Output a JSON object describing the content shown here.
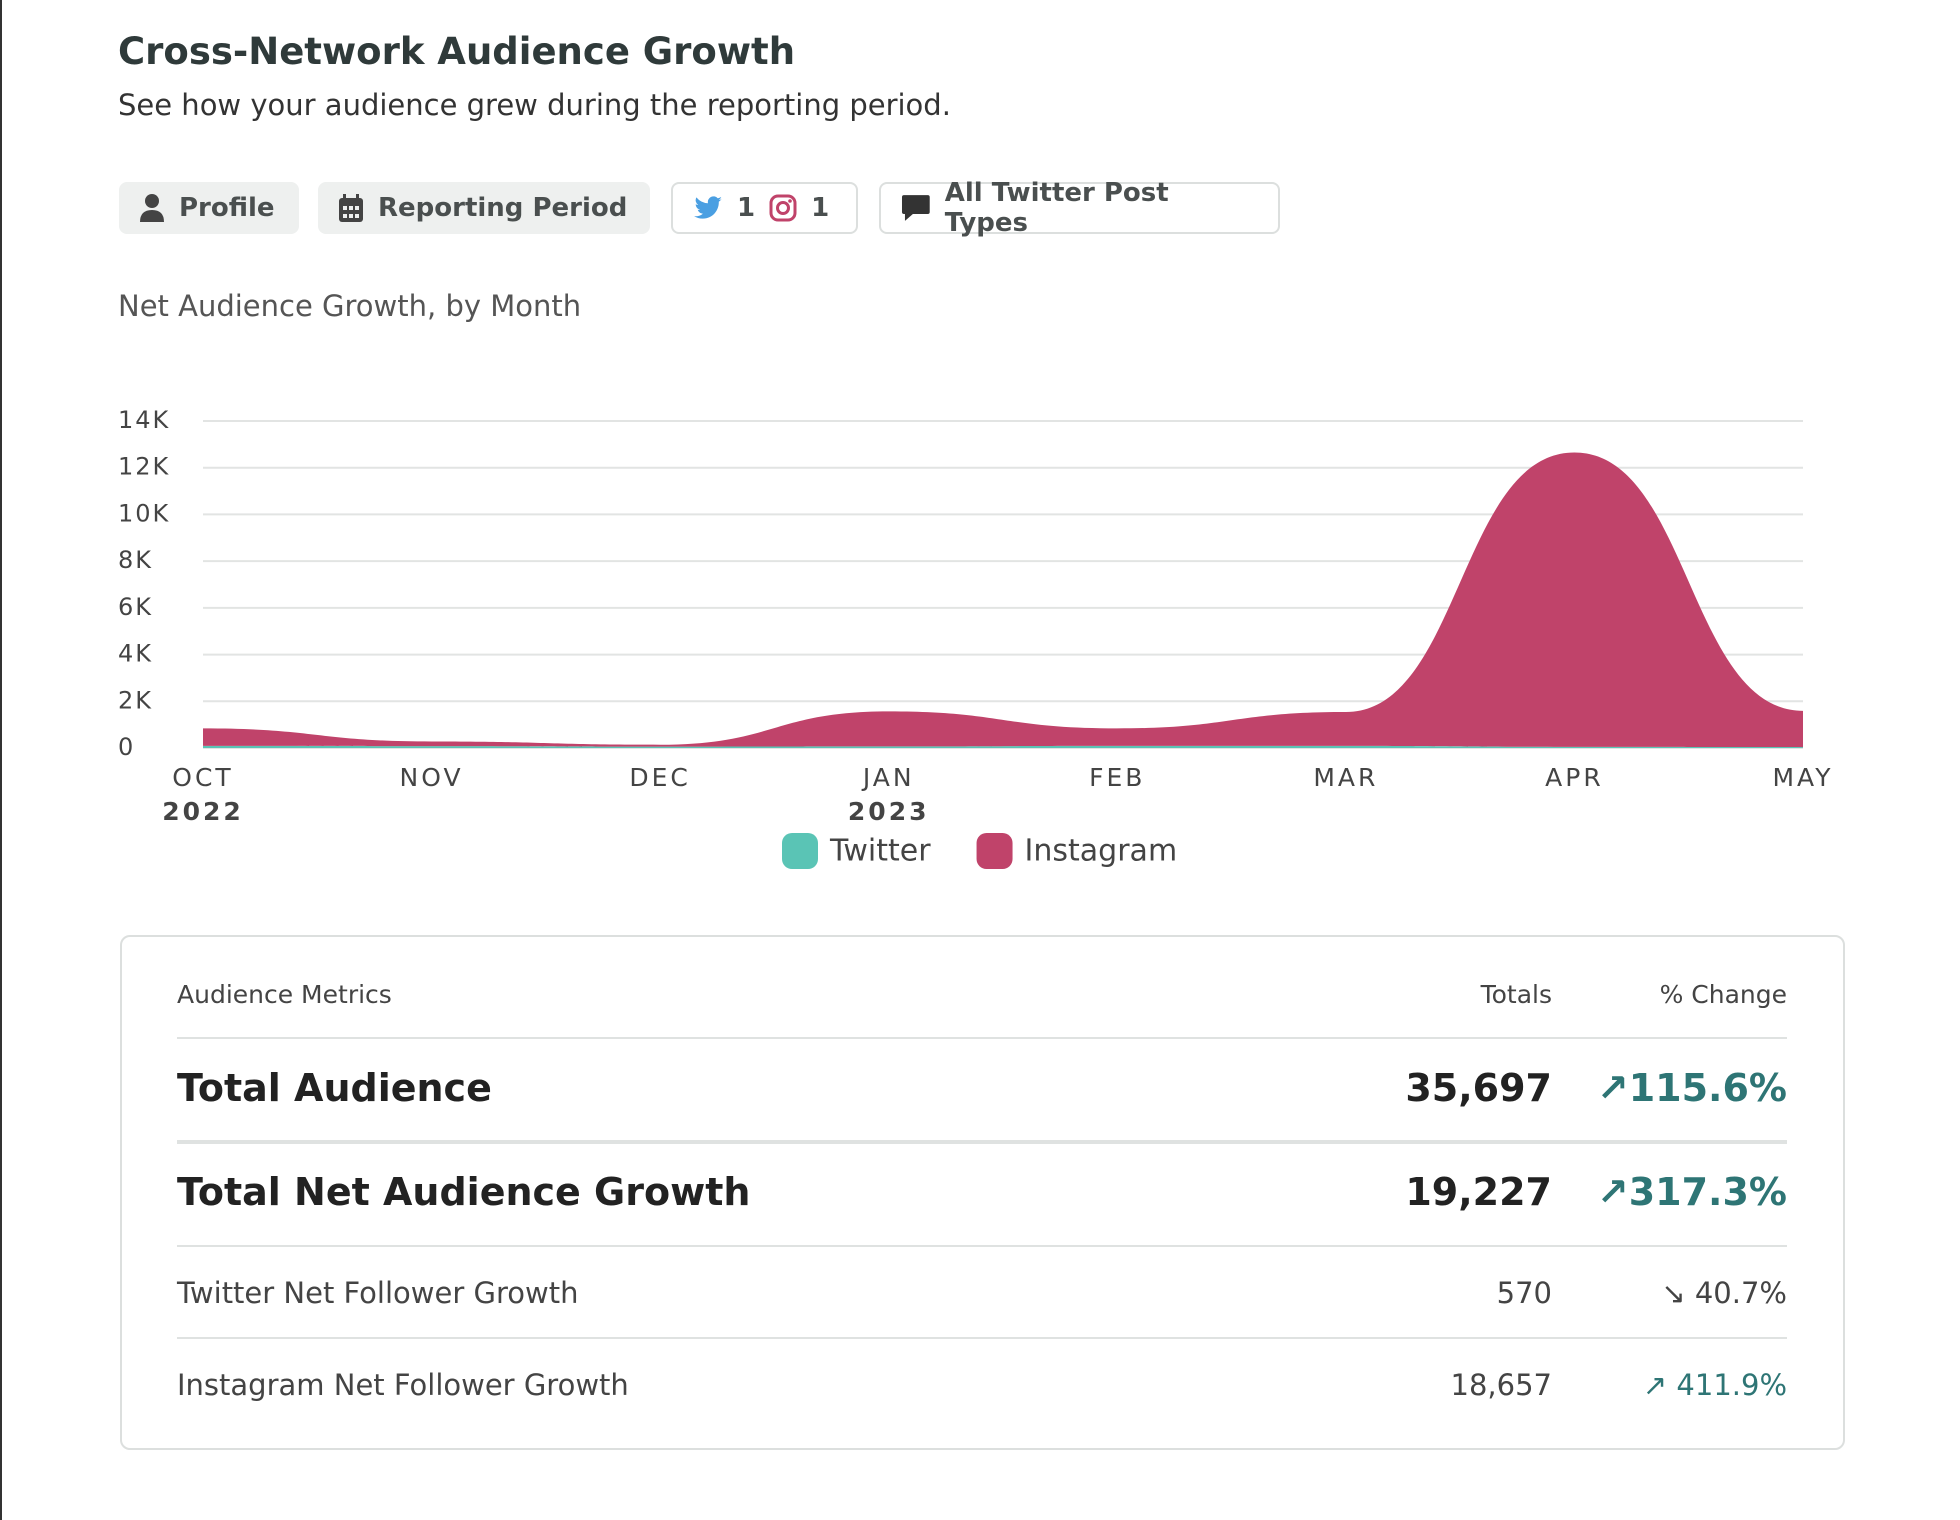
{
  "header": {
    "title": "Cross-Network Audience Growth",
    "subtitle": "See how your audience grew during the reporting period."
  },
  "filters": {
    "profile": "Profile",
    "period": "Reporting Period",
    "twitter_count": "1",
    "instagram_count": "1",
    "post_types": "All Twitter Post Types"
  },
  "chart_data": {
    "type": "stacked-area",
    "title": "Net Audience Growth, by Month",
    "categories": [
      "OCT",
      "NOV",
      "DEC",
      "JAN",
      "FEB",
      "MAR",
      "APR",
      "MAY"
    ],
    "year_labels": [
      "2022",
      null,
      null,
      "2023",
      null,
      null,
      null,
      null
    ],
    "series": [
      {
        "name": "Twitter",
        "color": "#5ac4b5",
        "values": [
          90,
          80,
          60,
          70,
          90,
          90,
          50,
          40
        ]
      },
      {
        "name": "Instagram",
        "color": "#c0436a",
        "values": [
          750,
          200,
          80,
          1500,
          750,
          1450,
          12600,
          1550
        ]
      }
    ],
    "ylim": [
      0,
      14000
    ],
    "yticks": [
      0,
      {
        "value": 2000,
        "label": "2K"
      },
      {
        "value": 4000,
        "label": "4K"
      },
      {
        "value": 6000,
        "label": "6K"
      },
      {
        "value": 8000,
        "label": "8K"
      },
      {
        "value": 10000,
        "label": "10K"
      },
      {
        "value": 12000,
        "label": "12K"
      },
      {
        "value": 14000,
        "label": "14K"
      }
    ],
    "grid": true
  },
  "table": {
    "header": [
      "Audience Metrics",
      "Totals",
      "% Change"
    ],
    "rows": [
      [
        "Total Audience",
        "35,697",
        "↗115.6%"
      ],
      [
        "Total Net Audience Growth",
        "19,227",
        "↗317.3%"
      ],
      [
        "Twitter Net Follower Growth",
        "570",
        "↘ 40.7%"
      ],
      [
        "Instagram Net Follower Growth",
        "18,657",
        "↗ 411.9%"
      ]
    ]
  }
}
